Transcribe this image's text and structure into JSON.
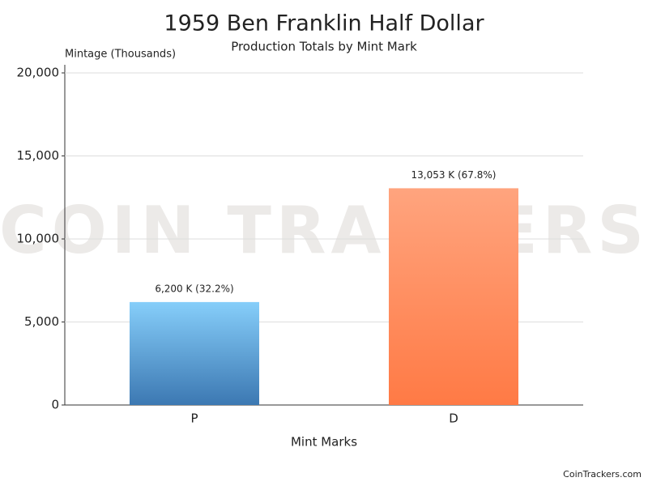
{
  "chart_data": {
    "type": "bar",
    "title": "1959 Ben Franklin Half Dollar",
    "subtitle": "Production Totals by Mint Mark",
    "y_axis_label": "Mintage (Thousands)",
    "x_axis_label": "Mint Marks",
    "categories": [
      "P",
      "D"
    ],
    "values": [
      6200,
      13053
    ],
    "value_labels": [
      "6,200 K (32.2%)",
      "13,053 K (67.8%)"
    ],
    "gradients": [
      {
        "top": "#86cefa",
        "bottom": "#3c78b2"
      },
      {
        "top": "#ffa47e",
        "bottom": "#ff7a45"
      }
    ],
    "ylim": [
      0,
      20000
    ],
    "yticks": [
      0,
      {
        "value": 5000,
        "label": "5,000"
      },
      {
        "value": 10000,
        "label": "10,000"
      },
      {
        "value": 15000,
        "label": "15,000"
      },
      {
        "value": 20000,
        "label": "20,000"
      }
    ],
    "grid": true,
    "watermark": "COIN TRACKERS",
    "credit": "CoinTrackers.com"
  }
}
